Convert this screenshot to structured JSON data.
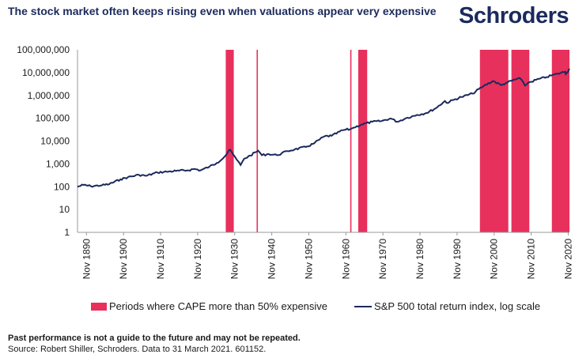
{
  "header": {
    "title": "The stock market often keeps rising even when valuations appear very expensive",
    "brand": "Schroders"
  },
  "footer": {
    "disclaimer": "Past performance is not a guide to the future and may not be repeated.",
    "source": "Source: Robert Shiller, Schroders. Data to 31 March 2021. 601152."
  },
  "colors": {
    "accent": "#e8305c",
    "line": "#1b2a5c",
    "text": "#1b2a5c"
  },
  "chart_data": {
    "type": "line",
    "yscale": "log",
    "ylim": [
      1,
      100000000
    ],
    "xlim": [
      "1888-06",
      "2021-03"
    ],
    "ytick_labels": [
      "1",
      "10",
      "100",
      "1,000",
      "10,000",
      "100,000",
      "1,000,000",
      "10,000,000",
      "100,000,000"
    ],
    "ytick_values": [
      1,
      10,
      100,
      1000,
      10000,
      100000,
      1000000,
      10000000,
      100000000
    ],
    "xtick_labels": [
      "Nov 1890",
      "Nov 1900",
      "Nov 1910",
      "Nov 1920",
      "Nov 1930",
      "Nov 1940",
      "Nov 1950",
      "Nov 1960",
      "Nov 1970",
      "Nov 1980",
      "Nov 1990",
      "Nov 2000",
      "Nov 2010",
      "Nov 2020"
    ],
    "xtick_dates": [
      "1890-11",
      "1900-11",
      "1910-11",
      "1920-11",
      "1930-11",
      "1940-11",
      "1950-11",
      "1960-11",
      "1970-11",
      "1980-11",
      "1990-11",
      "2000-11",
      "2010-11",
      "2020-11"
    ],
    "grid": false,
    "legend": {
      "position": "bottom",
      "band_label": "Periods where CAPE more than 50% expensive",
      "line_label": "S&P 500 total return index, log scale"
    },
    "bands": [
      {
        "start": "1928-06",
        "end": "1930-08"
      },
      {
        "start": "1936-10",
        "end": "1937-02"
      },
      {
        "start": "1962-01",
        "end": "1962-05"
      },
      {
        "start": "1964-03",
        "end": "1966-08"
      },
      {
        "start": "1997-01",
        "end": "2004-09"
      },
      {
        "start": "2005-07",
        "end": "2010-05"
      },
      {
        "start": "2016-06",
        "end": "2021-03"
      }
    ],
    "series": [
      {
        "name": "S&P 500 total return index, log scale",
        "x": [
          "1888-06",
          "1890-01",
          "1892-01",
          "1895-01",
          "1897-01",
          "1900-01",
          "1902-01",
          "1905-01",
          "1907-01",
          "1910-01",
          "1913-01",
          "1915-01",
          "1918-01",
          "1920-01",
          "1921-08",
          "1924-01",
          "1926-01",
          "1928-01",
          "1929-08",
          "1930-06",
          "1931-06",
          "1932-06",
          "1933-06",
          "1935-01",
          "1937-03",
          "1938-03",
          "1940-01",
          "1942-04",
          "1945-01",
          "1947-01",
          "1950-01",
          "1952-01",
          "1955-01",
          "1957-01",
          "1960-01",
          "1962-01",
          "1963-01",
          "1965-01",
          "1968-01",
          "1970-06",
          "1972-12",
          "1974-10",
          "1977-01",
          "1980-01",
          "1982-08",
          "1985-01",
          "1987-08",
          "1988-01",
          "1990-01",
          "1992-01",
          "1995-01",
          "1998-01",
          "2000-08",
          "2002-10",
          "2004-01",
          "2007-10",
          "2009-03",
          "2010-01",
          "2013-01",
          "2015-01",
          "2018-01",
          "2020-02",
          "2020-03",
          "2021-03"
        ],
        "y": [
          100,
          120,
          105,
          115,
          130,
          210,
          260,
          330,
          300,
          420,
          460,
          490,
          520,
          600,
          520,
          750,
          1100,
          2000,
          4200,
          2600,
          1500,
          900,
          1700,
          2300,
          3800,
          2400,
          2700,
          2400,
          3600,
          4300,
          5500,
          7500,
          16000,
          17000,
          30000,
          33000,
          39000,
          53000,
          70000,
          75000,
          98000,
          70000,
          100000,
          140000,
          170000,
          270000,
          570000,
          470000,
          650000,
          850000,
          1200000,
          2600000,
          4300000,
          2800000,
          3500000,
          5800000,
          2700000,
          3600000,
          5300000,
          6400000,
          9000000,
          11000000,
          8500000,
          15000000
        ]
      }
    ]
  }
}
